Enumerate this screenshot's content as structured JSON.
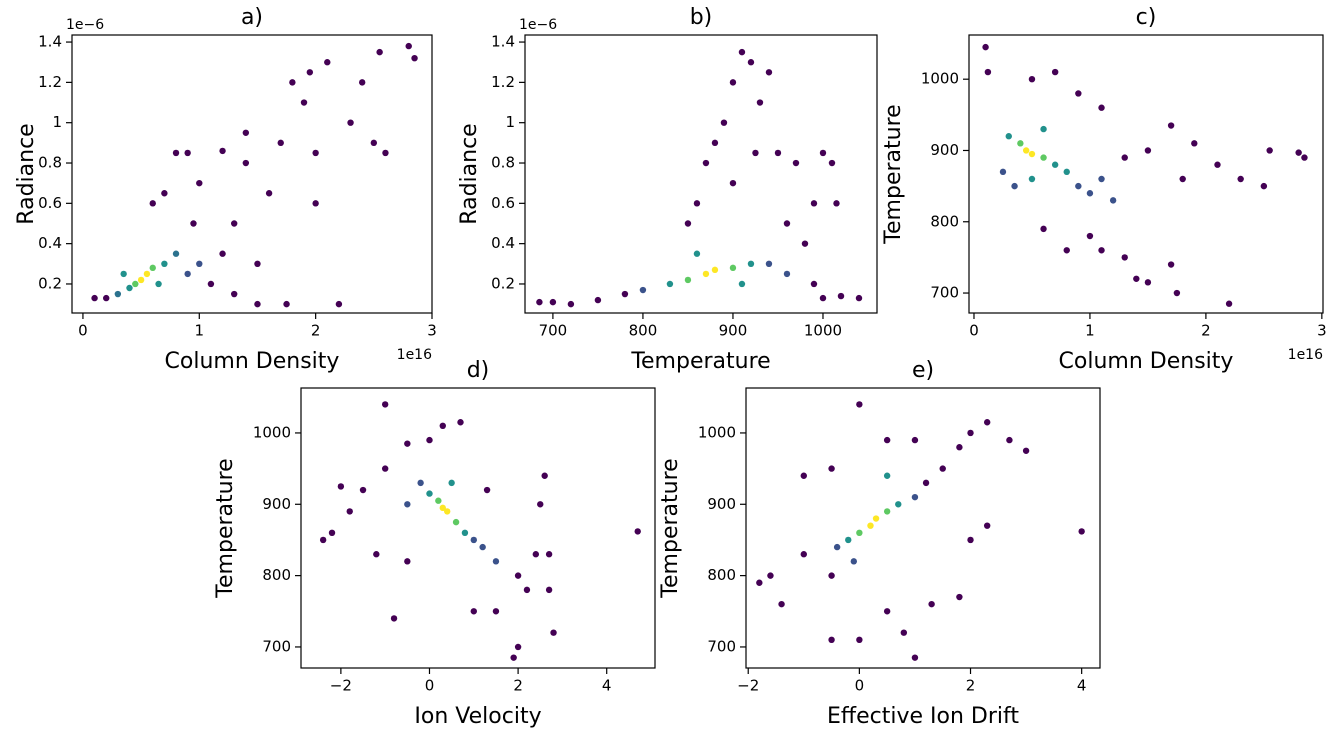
{
  "chart_data": [
    {
      "type": "scatter",
      "title": "a)",
      "xlabel": "Column Density",
      "ylabel": "Radiance",
      "x_offset_text": "1e16",
      "y_offset_text": "1e−6",
      "x": [
        0.1,
        0.2,
        0.6,
        0.7,
        0.8,
        0.9,
        1.0,
        1.2,
        1.3,
        1.4,
        1.5,
        1.6,
        1.7,
        1.8,
        1.75,
        1.9,
        2.0,
        2.1,
        2.2,
        2.3,
        2.4,
        2.5,
        2.55,
        2.6,
        2.8,
        2.85,
        1.5,
        1.3,
        2.0,
        1.95,
        1.4,
        0.95,
        1.1,
        1.2,
        1.0,
        0.9,
        0.8,
        0.3,
        0.35,
        0.7,
        0.65,
        0.4,
        0.6,
        0.45,
        0.5,
        0.55
      ],
      "values": [
        0.13,
        0.13,
        0.6,
        0.65,
        0.85,
        0.85,
        0.7,
        0.86,
        0.5,
        0.8,
        0.1,
        0.65,
        0.9,
        1.2,
        0.1,
        1.1,
        0.85,
        1.3,
        0.1,
        1.0,
        1.2,
        0.9,
        1.35,
        0.85,
        1.38,
        1.32,
        0.3,
        0.15,
        0.6,
        1.25,
        0.95,
        0.5,
        0.2,
        0.35,
        0.3,
        0.25,
        0.35,
        0.15,
        0.25,
        0.3,
        0.2,
        0.18,
        0.28,
        0.2,
        0.22,
        0.25
      ],
      "colors": [
        "#440154",
        "#440154",
        "#440154",
        "#440154",
        "#440154",
        "#440154",
        "#440154",
        "#440154",
        "#440154",
        "#440154",
        "#440154",
        "#440154",
        "#440154",
        "#440154",
        "#440154",
        "#440154",
        "#440154",
        "#440154",
        "#440154",
        "#440154",
        "#440154",
        "#440154",
        "#440154",
        "#440154",
        "#440154",
        "#440154",
        "#440154",
        "#440154",
        "#440154",
        "#440154",
        "#440154",
        "#440154",
        "#440154",
        "#440154",
        "#3b528b",
        "#3b528b",
        "#2c728e",
        "#2c728e",
        "#21918c",
        "#21918c",
        "#21918c",
        "#21918c",
        "#5ec962",
        "#5ec962",
        "#fde725",
        "#fde725"
      ],
      "xlim": [
        -0.094,
        3.0
      ],
      "ylim": [
        0.056,
        1.435
      ],
      "xticks": [
        0,
        1,
        2,
        3
      ],
      "yticks": [
        0.2,
        0.4,
        0.6,
        0.8,
        1.0,
        1.2,
        1.4
      ]
    },
    {
      "type": "scatter",
      "title": "b)",
      "xlabel": "Temperature",
      "ylabel": "Radiance",
      "y_offset_text": "1e−6",
      "x": [
        685,
        700,
        720,
        750,
        1000,
        1040,
        1020,
        990,
        860,
        870,
        880,
        890,
        900,
        910,
        920,
        930,
        940,
        925,
        950,
        970,
        990,
        1000,
        1010,
        1015,
        960,
        980,
        900,
        850,
        780,
        800,
        960,
        940,
        830,
        920,
        910,
        860,
        850,
        900,
        880,
        870
      ],
      "values": [
        0.11,
        0.11,
        0.1,
        0.12,
        0.13,
        0.13,
        0.14,
        0.2,
        0.6,
        0.8,
        0.9,
        1.0,
        1.2,
        1.35,
        1.3,
        1.1,
        1.25,
        0.85,
        0.85,
        0.8,
        0.6,
        0.85,
        0.8,
        0.6,
        0.5,
        0.4,
        0.7,
        0.5,
        0.15,
        0.17,
        0.25,
        0.3,
        0.2,
        0.3,
        0.2,
        0.35,
        0.22,
        0.28,
        0.27,
        0.25
      ],
      "colors": [
        "#440154",
        "#440154",
        "#440154",
        "#440154",
        "#440154",
        "#440154",
        "#440154",
        "#440154",
        "#440154",
        "#440154",
        "#440154",
        "#440154",
        "#440154",
        "#440154",
        "#440154",
        "#440154",
        "#440154",
        "#440154",
        "#440154",
        "#440154",
        "#440154",
        "#440154",
        "#440154",
        "#440154",
        "#440154",
        "#440154",
        "#440154",
        "#440154",
        "#440154",
        "#3b528b",
        "#3b528b",
        "#3b528b",
        "#21918c",
        "#21918c",
        "#21918c",
        "#21918c",
        "#5ec962",
        "#5ec962",
        "#fde725",
        "#fde725"
      ],
      "xlim": [
        669,
        1060
      ],
      "ylim": [
        0.056,
        1.435
      ],
      "xticks": [
        700,
        800,
        900,
        1000
      ],
      "yticks": [
        0.2,
        0.4,
        0.6,
        0.8,
        1.0,
        1.2,
        1.4
      ]
    },
    {
      "type": "scatter",
      "title": "c)",
      "xlabel": "Column Density",
      "ylabel": "Temperature",
      "x_offset_text": "1e16",
      "x": [
        0.1,
        0.12,
        0.5,
        0.7,
        0.9,
        1.0,
        1.1,
        1.3,
        1.4,
        1.5,
        1.7,
        1.75,
        2.2,
        1.5,
        1.7,
        1.9,
        2.1,
        2.3,
        2.5,
        2.55,
        2.8,
        2.85,
        1.8,
        1.3,
        1.1,
        0.6,
        0.8,
        1.2,
        1.1,
        0.35,
        0.25,
        1.0,
        0.9,
        0.6,
        0.5,
        0.8,
        0.3,
        0.7,
        0.4,
        0.6,
        0.45,
        0.5
      ],
      "values": [
        1045,
        1010,
        1000,
        1010,
        980,
        780,
        760,
        750,
        720,
        715,
        740,
        700,
        685,
        900,
        935,
        910,
        880,
        860,
        850,
        900,
        897,
        890,
        860,
        890,
        960,
        790,
        760,
        830,
        860,
        850,
        870,
        840,
        850,
        930,
        860,
        870,
        920,
        880,
        910,
        890,
        900,
        895
      ],
      "colors": [
        "#440154",
        "#440154",
        "#440154",
        "#440154",
        "#440154",
        "#440154",
        "#440154",
        "#440154",
        "#440154",
        "#440154",
        "#440154",
        "#440154",
        "#440154",
        "#440154",
        "#440154",
        "#440154",
        "#440154",
        "#440154",
        "#440154",
        "#440154",
        "#440154",
        "#440154",
        "#440154",
        "#440154",
        "#440154",
        "#440154",
        "#440154",
        "#3b528b",
        "#3b528b",
        "#3b528b",
        "#3b528b",
        "#3b528b",
        "#3b528b",
        "#21918c",
        "#21918c",
        "#21918c",
        "#21918c",
        "#21918c",
        "#5ec962",
        "#5ec962",
        "#fde725",
        "#fde725"
      ],
      "xlim": [
        -0.043,
        3.01
      ],
      "ylim": [
        672,
        1062
      ],
      "xticks": [
        0,
        1,
        2,
        3
      ],
      "yticks": [
        700,
        800,
        900,
        1000
      ]
    },
    {
      "type": "scatter",
      "title": "d)",
      "xlabel": "Ion Velocity",
      "ylabel": "Temperature",
      "x": [
        2.2,
        2.4,
        2.5,
        2.6,
        2.7,
        2.8,
        2.0,
        1.9,
        1.5,
        1.0,
        0.7,
        0.3,
        0,
        -0.5,
        -1,
        -1,
        -1.5,
        -1.8,
        -2,
        -2.2,
        -2.4,
        -0.8,
        -1.2,
        -0.5,
        4.7,
        2.7,
        1.3,
        2,
        1.5,
        -0.5,
        1.2,
        -0.2,
        1.0,
        0.8,
        0.5,
        0,
        0.6,
        0.2,
        0.4,
        0.3
      ],
      "values": [
        780,
        830,
        900,
        940,
        780,
        720,
        700,
        685,
        750,
        750,
        1015,
        1010,
        990,
        985,
        1040,
        950,
        920,
        890,
        925,
        860,
        850,
        740,
        830,
        820,
        862,
        830,
        920,
        800,
        820,
        900,
        840,
        930,
        850,
        860,
        930,
        915,
        875,
        905,
        890,
        895
      ],
      "colors": [
        "#440154",
        "#440154",
        "#440154",
        "#440154",
        "#440154",
        "#440154",
        "#440154",
        "#440154",
        "#440154",
        "#440154",
        "#440154",
        "#440154",
        "#440154",
        "#440154",
        "#440154",
        "#440154",
        "#440154",
        "#440154",
        "#440154",
        "#440154",
        "#440154",
        "#440154",
        "#440154",
        "#440154",
        "#440154",
        "#440154",
        "#440154",
        "#440154",
        "#3b528b",
        "#3b528b",
        "#3b528b",
        "#3b528b",
        "#3b528b",
        "#21918c",
        "#21918c",
        "#21918c",
        "#5ec962",
        "#5ec962",
        "#fde725",
        "#fde725"
      ],
      "xlim": [
        -2.9,
        5.09
      ],
      "ylim": [
        670.5,
        1063
      ],
      "xticks": [
        {
          "value": -2,
          "label": "−2"
        },
        0,
        2,
        4
      ],
      "yticks": [
        700,
        800,
        900,
        1000
      ]
    },
    {
      "type": "scatter",
      "title": "e)",
      "xlabel": "Effective Ion Drift",
      "ylabel": "Temperature",
      "x": [
        1.2,
        1.5,
        2,
        2.3,
        2.7,
        3,
        1.8,
        -1.8,
        -1.6,
        -1.4,
        -1,
        -0.5,
        -0.5,
        0,
        0.5,
        0.8,
        1.0,
        1.3,
        1.8,
        2,
        2.3,
        4,
        -0.5,
        0,
        0.5,
        1,
        -1,
        -0.1,
        1,
        -0.4,
        -0.2,
        0.7,
        0.5,
        0,
        0.5,
        0.2,
        0.3
      ],
      "values": [
        930,
        950,
        1000,
        1015,
        990,
        975,
        980,
        790,
        800,
        760,
        830,
        800,
        710,
        710,
        750,
        720,
        685,
        760,
        770,
        850,
        870,
        862,
        950,
        1040,
        990,
        990,
        940,
        820,
        910,
        840,
        850,
        900,
        940,
        860,
        890,
        870,
        880
      ],
      "colors": [
        "#440154",
        "#440154",
        "#440154",
        "#440154",
        "#440154",
        "#440154",
        "#440154",
        "#440154",
        "#440154",
        "#440154",
        "#440154",
        "#440154",
        "#440154",
        "#440154",
        "#440154",
        "#440154",
        "#440154",
        "#440154",
        "#440154",
        "#440154",
        "#440154",
        "#440154",
        "#440154",
        "#440154",
        "#440154",
        "#440154",
        "#440154",
        "#3b528b",
        "#3b528b",
        "#3b528b",
        "#21918c",
        "#21918c",
        "#21918c",
        "#5ec962",
        "#5ec962",
        "#fde725",
        "#fde725"
      ],
      "xlim": [
        -2.04,
        4.33
      ],
      "ylim": [
        670.5,
        1063
      ],
      "xticks": [
        {
          "value": -2,
          "label": "−2"
        },
        0,
        2,
        4
      ],
      "yticks": [
        700,
        800,
        900,
        1000
      ]
    }
  ]
}
